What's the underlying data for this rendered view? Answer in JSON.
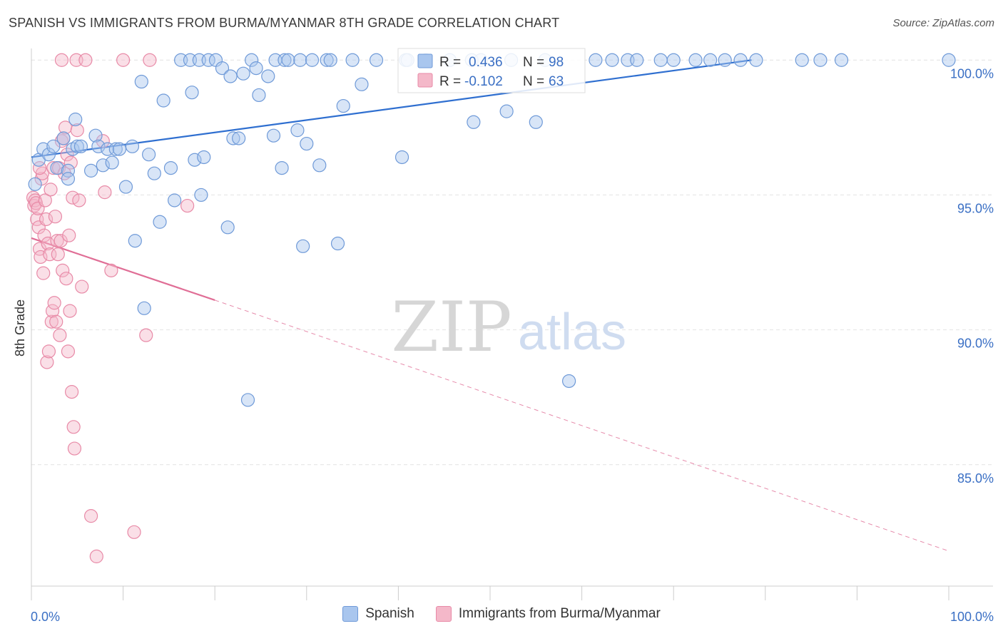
{
  "title": "SPANISH VS IMMIGRANTS FROM BURMA/MYANMAR 8TH GRADE CORRELATION CHART",
  "source": "Source: ZipAtlas.com",
  "watermark": {
    "zip": "ZIP",
    "atlas": "atlas"
  },
  "colors": {
    "blue_fill": "#a9c6ee",
    "blue_stroke": "#6f9ad8",
    "blue_line": "#2f6fd0",
    "pink_fill": "#f4b8c9",
    "pink_stroke": "#e88aa7",
    "pink_line": "#e06e96",
    "axis_label": "#3a6fc4",
    "grid": "#e2e2e2"
  },
  "stats_box": {
    "rows": [
      {
        "r_label": "R =",
        "r_value": "0.436",
        "n_label": "N =",
        "n_value": "98",
        "series": "blue"
      },
      {
        "r_label": "R =",
        "r_value": "-0.102",
        "n_label": "N =",
        "n_value": "63",
        "series": "pink"
      }
    ]
  },
  "legend": {
    "items": [
      {
        "label": "Spanish",
        "series": "blue"
      },
      {
        "label": "Immigrants from Burma/Myanmar",
        "series": "pink"
      }
    ]
  },
  "chart_data": {
    "type": "scatter",
    "title": "SPANISH VS IMMIGRANTS FROM BURMA/MYANMAR 8TH GRADE CORRELATION CHART",
    "xlabel": "",
    "ylabel": "8th Grade",
    "xlim": [
      0,
      100
    ],
    "ylim": [
      80.5,
      100.8
    ],
    "x_tick_labels": [
      {
        "value": 0,
        "label": "0.0%"
      },
      {
        "value": 100,
        "label": "100.0%"
      }
    ],
    "x_minor_ticks": [
      10,
      20,
      30,
      40,
      50,
      60,
      70,
      80,
      90
    ],
    "y_ticks": [
      {
        "value": 100,
        "label": "100.0%"
      },
      {
        "value": 95,
        "label": "95.0%"
      },
      {
        "value": 90,
        "label": "90.0%"
      },
      {
        "value": 85,
        "label": "85.0%"
      }
    ],
    "grid": true,
    "legend_position": "bottom",
    "series": [
      {
        "name": "Spanish",
        "color": "blue",
        "trend": {
          "x": [
            0,
            78.5
          ],
          "y": [
            96.4,
            100.0
          ]
        },
        "points": [
          [
            0.4,
            95.4
          ],
          [
            0.8,
            96.3
          ],
          [
            1.3,
            96.7
          ],
          [
            1.9,
            96.5
          ],
          [
            2.4,
            96.8
          ],
          [
            2.8,
            96.0
          ],
          [
            3.5,
            97.1
          ],
          [
            4.0,
            95.9
          ],
          [
            4.0,
            95.6
          ],
          [
            4.5,
            96.7
          ],
          [
            4.8,
            97.8
          ],
          [
            5.0,
            96.8
          ],
          [
            5.4,
            96.8
          ],
          [
            6.5,
            95.9
          ],
          [
            7.0,
            97.2
          ],
          [
            7.3,
            96.8
          ],
          [
            7.8,
            96.1
          ],
          [
            8.3,
            96.7
          ],
          [
            8.8,
            96.2
          ],
          [
            9.2,
            96.7
          ],
          [
            9.6,
            96.7
          ],
          [
            10.3,
            95.3
          ],
          [
            11.0,
            96.8
          ],
          [
            11.3,
            93.3
          ],
          [
            12.0,
            99.2
          ],
          [
            12.3,
            90.8
          ],
          [
            12.8,
            96.5
          ],
          [
            13.4,
            95.8
          ],
          [
            14.0,
            94.0
          ],
          [
            14.4,
            98.5
          ],
          [
            15.2,
            96.0
          ],
          [
            15.6,
            94.8
          ],
          [
            16.3,
            100.0
          ],
          [
            17.3,
            100.0
          ],
          [
            17.5,
            98.8
          ],
          [
            17.8,
            96.3
          ],
          [
            18.3,
            100.0
          ],
          [
            18.5,
            95.0
          ],
          [
            18.8,
            96.4
          ],
          [
            19.3,
            100.0
          ],
          [
            20.1,
            100.0
          ],
          [
            20.8,
            99.7
          ],
          [
            21.4,
            93.8
          ],
          [
            21.7,
            99.4
          ],
          [
            22.0,
            97.1
          ],
          [
            22.6,
            97.1
          ],
          [
            23.1,
            99.5
          ],
          [
            23.6,
            87.4
          ],
          [
            24.0,
            100.0
          ],
          [
            24.5,
            99.7
          ],
          [
            24.8,
            98.7
          ],
          [
            25.8,
            99.4
          ],
          [
            26.4,
            97.2
          ],
          [
            26.6,
            100.0
          ],
          [
            27.3,
            96.0
          ],
          [
            27.6,
            100.0
          ],
          [
            28.0,
            100.0
          ],
          [
            29.0,
            97.4
          ],
          [
            29.3,
            100.0
          ],
          [
            29.6,
            93.1
          ],
          [
            30.0,
            96.9
          ],
          [
            30.6,
            100.0
          ],
          [
            31.4,
            96.1
          ],
          [
            32.2,
            100.0
          ],
          [
            32.6,
            100.0
          ],
          [
            33.4,
            93.2
          ],
          [
            34.0,
            98.3
          ],
          [
            35.0,
            100.0
          ],
          [
            36.0,
            99.1
          ],
          [
            37.6,
            100.0
          ],
          [
            40.4,
            96.4
          ],
          [
            40.8,
            100.0
          ],
          [
            41.0,
            100.0
          ],
          [
            43.0,
            100.0
          ],
          [
            45.6,
            100.0
          ],
          [
            48.0,
            100.0
          ],
          [
            48.2,
            97.7
          ],
          [
            49.0,
            100.0
          ],
          [
            51.8,
            98.1
          ],
          [
            52.3,
            100.0
          ],
          [
            55.0,
            97.7
          ],
          [
            56.0,
            100.0
          ],
          [
            58.6,
            88.1
          ],
          [
            61.5,
            100.0
          ],
          [
            63.3,
            100.0
          ],
          [
            65.0,
            100.0
          ],
          [
            66.0,
            100.0
          ],
          [
            68.6,
            100.0
          ],
          [
            70.0,
            100.0
          ],
          [
            72.4,
            100.0
          ],
          [
            74.0,
            100.0
          ],
          [
            75.6,
            100.0
          ],
          [
            77.3,
            100.0
          ],
          [
            79.0,
            100.0
          ],
          [
            84.0,
            100.0
          ],
          [
            86.0,
            100.0
          ],
          [
            88.3,
            100.0
          ],
          [
            100.0,
            100.0
          ]
        ]
      },
      {
        "name": "Immigrants from Burma/Myanmar",
        "color": "pink",
        "trend": {
          "x": [
            0,
            20
          ],
          "y": [
            93.4,
            91.1
          ]
        },
        "trend_extended": {
          "x": [
            20,
            100
          ],
          "y": [
            91.1,
            81.8
          ]
        },
        "points": [
          [
            0.2,
            94.9
          ],
          [
            0.3,
            94.6
          ],
          [
            0.4,
            94.8
          ],
          [
            0.5,
            94.7
          ],
          [
            0.6,
            94.1
          ],
          [
            0.7,
            94.5
          ],
          [
            0.8,
            93.8
          ],
          [
            0.9,
            93.0
          ],
          [
            1.0,
            92.7
          ],
          [
            1.1,
            95.6
          ],
          [
            1.2,
            95.8
          ],
          [
            1.3,
            92.1
          ],
          [
            1.4,
            93.5
          ],
          [
            1.5,
            94.8
          ],
          [
            1.6,
            94.1
          ],
          [
            1.7,
            88.8
          ],
          [
            1.8,
            93.2
          ],
          [
            1.9,
            89.2
          ],
          [
            2.0,
            92.8
          ],
          [
            2.1,
            95.2
          ],
          [
            2.2,
            90.3
          ],
          [
            2.3,
            90.7
          ],
          [
            2.4,
            96.0
          ],
          [
            2.5,
            91.0
          ],
          [
            2.6,
            94.2
          ],
          [
            2.7,
            90.3
          ],
          [
            2.8,
            93.3
          ],
          [
            2.9,
            92.8
          ],
          [
            3.0,
            96.0
          ],
          [
            3.1,
            89.8
          ],
          [
            3.2,
            93.3
          ],
          [
            3.3,
            97.0
          ],
          [
            3.4,
            92.2
          ],
          [
            3.5,
            97.1
          ],
          [
            3.6,
            95.8
          ],
          [
            3.7,
            97.5
          ],
          [
            3.8,
            91.9
          ],
          [
            3.9,
            96.5
          ],
          [
            4.0,
            89.2
          ],
          [
            4.1,
            93.5
          ],
          [
            4.2,
            90.7
          ],
          [
            4.3,
            96.2
          ],
          [
            4.4,
            87.7
          ],
          [
            4.5,
            94.9
          ],
          [
            4.6,
            86.4
          ],
          [
            4.7,
            85.6
          ],
          [
            4.9,
            100.0
          ],
          [
            5.0,
            97.4
          ],
          [
            5.2,
            94.8
          ],
          [
            5.5,
            91.6
          ],
          [
            5.9,
            100.0
          ],
          [
            6.5,
            83.1
          ],
          [
            7.1,
            81.6
          ],
          [
            7.8,
            97.0
          ],
          [
            8.0,
            95.1
          ],
          [
            8.7,
            92.2
          ],
          [
            10.0,
            100.0
          ],
          [
            11.2,
            82.5
          ],
          [
            12.5,
            89.8
          ],
          [
            12.9,
            100.0
          ],
          [
            17.0,
            94.6
          ],
          [
            3.3,
            100.0
          ],
          [
            0.9,
            96.0
          ]
        ]
      }
    ]
  }
}
